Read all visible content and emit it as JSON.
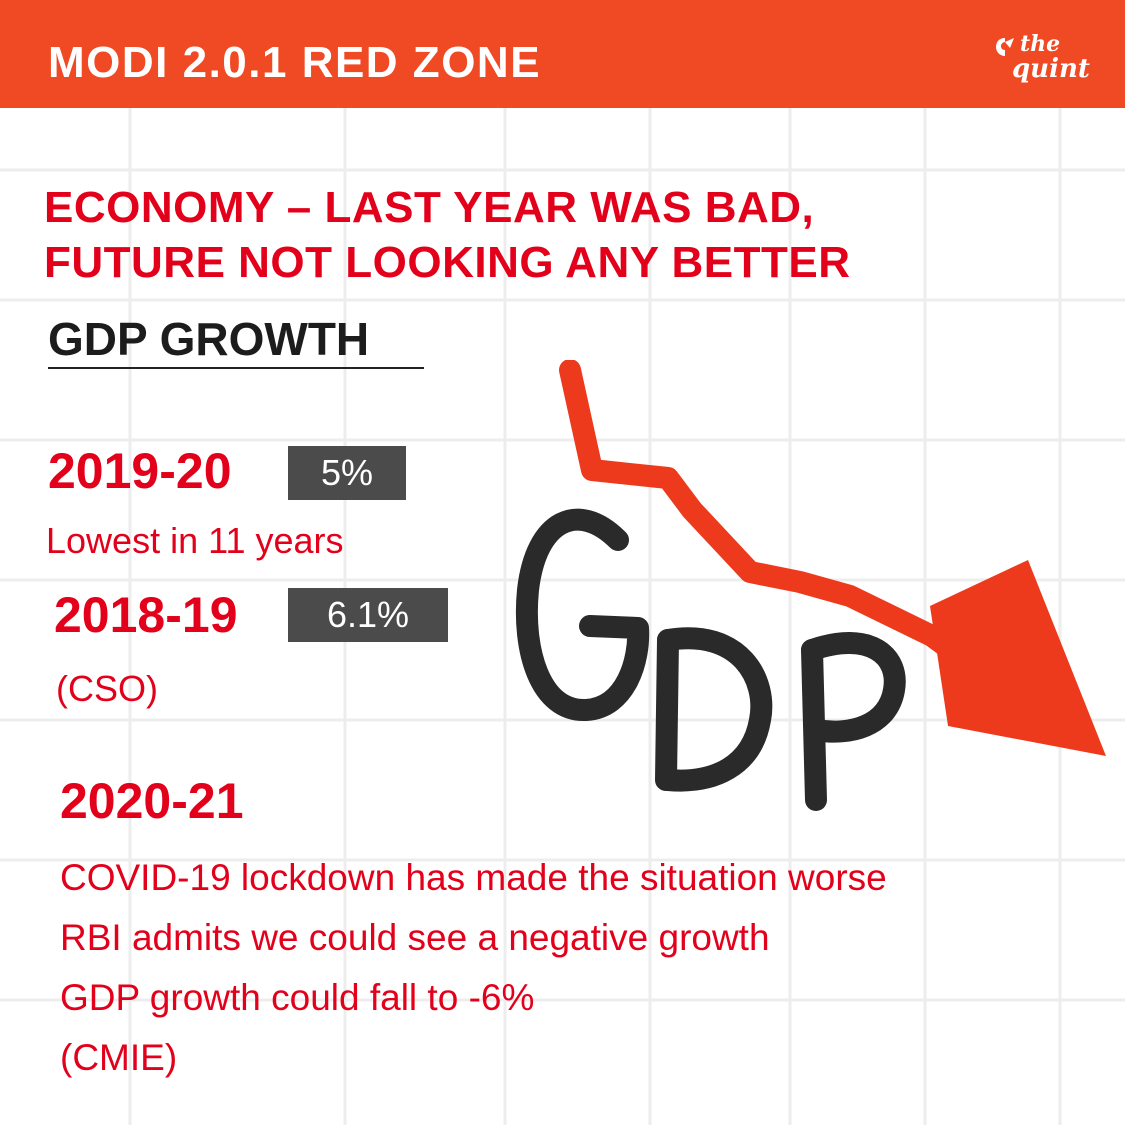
{
  "header": {
    "title": "MODI 2.0.1 RED ZONE",
    "logo_line1": "the",
    "logo_line2": "quint",
    "background_color": "#ef4a23"
  },
  "headline": {
    "line1": "ECONOMY – LAST YEAR WAS BAD,",
    "line2": "FUTURE NOT LOOKING ANY BETTER"
  },
  "section": {
    "title": "GDP GROWTH"
  },
  "entries": [
    {
      "year": "2019-20",
      "value": "5%",
      "note": "Lowest in 11 years"
    },
    {
      "year": "2018-19",
      "value": "6.1%",
      "note": "(CSO)"
    }
  ],
  "forecast": {
    "year": "2020-21",
    "lines": [
      "COVID-19 lockdown has made the situation worse",
      "RBI admits we could see a negative growth",
      "GDP growth could fall to -6%",
      "(CMIE)"
    ]
  },
  "illustration": {
    "letters": "GDP",
    "icon": "downward-trend-arrow-icon",
    "arrow_color": "#ee3a1c"
  },
  "colors": {
    "accent_red": "#e3001b",
    "badge_gray": "#4b4b4b",
    "title_dark": "#1c1c1c"
  }
}
